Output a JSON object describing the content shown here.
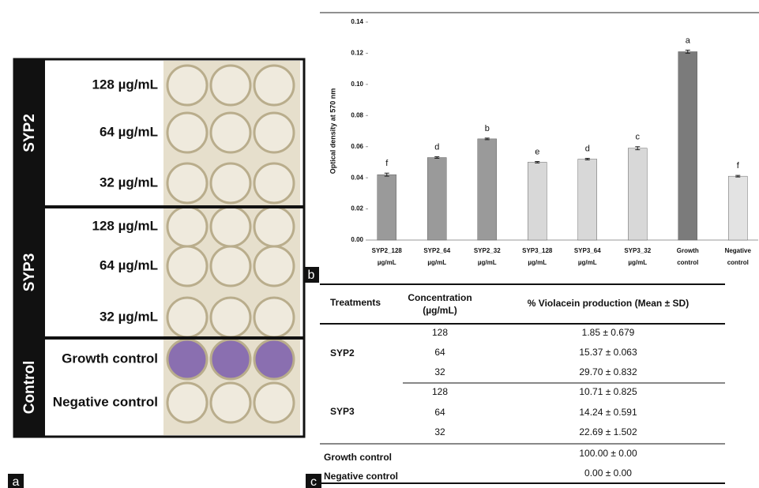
{
  "panel_labels": [
    "a",
    "b",
    "c"
  ],
  "panel_a": {
    "groups": [
      {
        "name": "SYP2",
        "rows": [
          "128 µg/mL",
          "64 µg/mL",
          "32 µg/mL"
        ]
      },
      {
        "name": "SYP3",
        "rows": [
          "128 µg/mL",
          "64 µg/mL",
          "32 µg/mL"
        ]
      },
      {
        "name": "Control",
        "rows": [
          "Growth control",
          "Negative control"
        ]
      }
    ]
  },
  "chart_data": {
    "type": "bar",
    "y_label": "Optical density at 570 nm",
    "categories": [
      [
        "SYP2_128",
        "µg/mL"
      ],
      [
        "SYP2_64",
        "µg/mL"
      ],
      [
        "SYP2_32",
        "µg/mL"
      ],
      [
        "SYP3_128",
        "µg/mL"
      ],
      [
        "SYP3_64",
        "µg/mL"
      ],
      [
        "SYP3_32",
        "µg/mL"
      ],
      [
        "Growth",
        "control"
      ],
      [
        "Negative",
        "control"
      ]
    ],
    "values": [
      0.042,
      0.053,
      0.065,
      0.05,
      0.052,
      0.059,
      0.121,
      0.041
    ],
    "errors": [
      0.001,
      0.0005,
      0.0005,
      0.0005,
      0.0005,
      0.001,
      0.001,
      0.0005
    ],
    "annotations": [
      "f",
      "d",
      "b",
      "e",
      "d",
      "c",
      "a",
      "f"
    ],
    "colors": [
      "#9a9a9a",
      "#9a9a9a",
      "#9a9a9a",
      "#d8d8d8",
      "#d8d8d8",
      "#d8d8d8",
      "#7b7b7b",
      "#e3e3e3"
    ],
    "ylim": [
      0,
      0.14
    ],
    "yticks": [
      {
        "value": 0,
        "label": "0.00"
      },
      {
        "value": 0.02,
        "label": "0.02"
      },
      {
        "value": 0.04,
        "label": "0.04"
      },
      {
        "value": 0.06,
        "label": "0.06"
      },
      {
        "value": 0.08,
        "label": "0.08"
      },
      {
        "value": 0.1,
        "label": "0.10"
      },
      {
        "value": 0.12,
        "label": "0.12"
      },
      {
        "value": 0.14,
        "label": "0.14"
      }
    ]
  },
  "table": {
    "header": [
      "Treatments",
      [
        "Concentration",
        "(µg/mL)"
      ],
      "% Violacein production (Mean ± SD)"
    ],
    "groups": [
      {
        "name": "SYP2",
        "rows": [
          {
            "concentration": 128,
            "result": "1.85 ± 0.679"
          },
          {
            "concentration": 64,
            "result": "15.37 ± 0.063"
          },
          {
            "concentration": 32,
            "result": "29.70 ± 0.832"
          }
        ]
      },
      {
        "name": "SYP3",
        "rows": [
          {
            "concentration": 128,
            "result": "10.71 ± 0.825"
          },
          {
            "concentration": 64,
            "result": "14.24 ± 0.591"
          },
          {
            "concentration": 32,
            "result": "22.69 ± 1.502"
          }
        ]
      },
      {
        "name": "Growth control",
        "rows": [
          {
            "result": "100.00 ± 0.00"
          }
        ]
      },
      {
        "name": "Negative control",
        "rows": [
          {
            "result": "0.00 ± 0.00"
          }
        ]
      }
    ]
  }
}
